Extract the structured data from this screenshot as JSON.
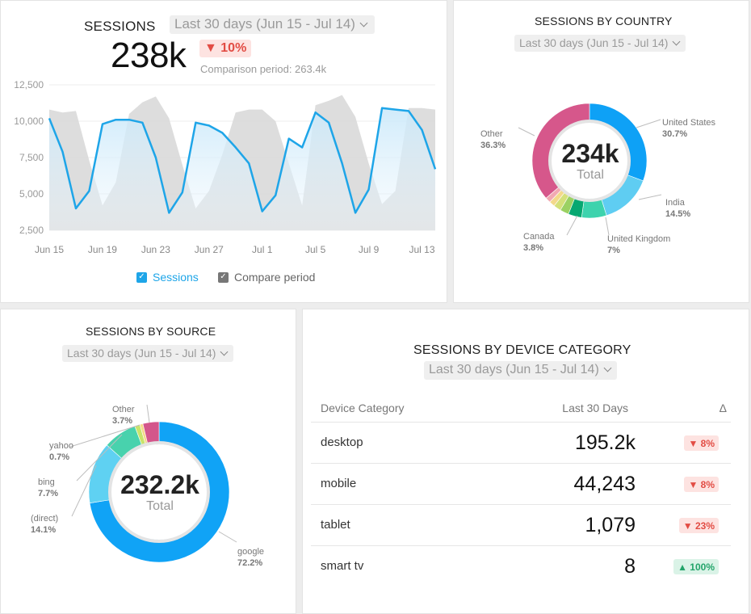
{
  "sessions": {
    "title": "SESSIONS",
    "date_range": "Last 30 days (Jun 15 - Jul 14)",
    "value": "238k",
    "delta": "▼ 10%",
    "comparison": "Comparison period: 263.4k",
    "legend": [
      {
        "label": "Sessions",
        "color": "#1ea5e8"
      },
      {
        "label": "Compare period",
        "color": "#777777"
      }
    ],
    "colors": {
      "line": "#1ea5e8",
      "compare": "#d7d7d7"
    }
  },
  "country": {
    "title": "SESSIONS BY COUNTRY",
    "date_range": "Last 30 days (Jun 15 - Jul 14)",
    "center_value": "234k",
    "center_label": "Total",
    "labels": {
      "us": {
        "name": "United States",
        "pct": "30.7%"
      },
      "india": {
        "name": "India",
        "pct": "14.5%"
      },
      "uk": {
        "name": "United Kingdom",
        "pct": "7%"
      },
      "canada": {
        "name": "Canada",
        "pct": "3.8%"
      },
      "other": {
        "name": "Other",
        "pct": "36.3%"
      }
    }
  },
  "source": {
    "title": "SESSIONS BY SOURCE",
    "date_range": "Last 30 days (Jun 15 - Jul 14)",
    "center_value": "232.2k",
    "center_label": "Total",
    "labels": {
      "other": {
        "name": "Other",
        "pct": "3.7%"
      },
      "yahoo": {
        "name": "yahoo",
        "pct": "0.7%"
      },
      "bing": {
        "name": "bing",
        "pct": "7.7%"
      },
      "direct": {
        "name": "(direct)",
        "pct": "14.1%"
      },
      "google": {
        "name": "google",
        "pct": "72.2%"
      }
    }
  },
  "device": {
    "title": "SESSIONS BY DEVICE CATEGORY",
    "date_range": "Last 30 days (Jun 15 - Jul 14)",
    "headers": {
      "category": "Device Category",
      "value": "Last 30 Days",
      "delta": "Δ"
    },
    "rows": [
      {
        "name": "desktop",
        "value": "195.2k",
        "delta": "▼ 8%",
        "dir": "down"
      },
      {
        "name": "mobile",
        "value": "44,243",
        "delta": "▼ 8%",
        "dir": "down"
      },
      {
        "name": "tablet",
        "value": "1,079",
        "delta": "▼ 23%",
        "dir": "down"
      },
      {
        "name": "smart tv",
        "value": "8",
        "delta": "▲ 100%",
        "dir": "up"
      }
    ]
  },
  "chart_data": [
    {
      "type": "area",
      "title": "SESSIONS",
      "ylim": [
        2500,
        12500
      ],
      "y_ticks": [
        2500,
        5000,
        7500,
        10000,
        12500
      ],
      "y_tick_labels": [
        "2,500",
        "5,000",
        "7,500",
        "10,000",
        "12,500"
      ],
      "x_tick_labels": [
        "Jun 15",
        "Jun 19",
        "Jun 23",
        "Jun 27",
        "Jul 1",
        "Jul 5",
        "Jul 9",
        "Jul 13"
      ],
      "x_tick_index": [
        0,
        4,
        8,
        12,
        16,
        20,
        24,
        28
      ],
      "grid": true,
      "legend_position": "bottom",
      "series": [
        {
          "name": "Sessions",
          "values": [
            10200,
            7900,
            4000,
            5200,
            9800,
            10100,
            10100,
            9900,
            7500,
            3700,
            5100,
            9900,
            9700,
            9200,
            8200,
            7100,
            3800,
            4900,
            8800,
            8200,
            10600,
            9900,
            7100,
            3700,
            5300,
            10900,
            10800,
            10700,
            9400,
            6700
          ]
        },
        {
          "name": "Compare period",
          "values": [
            10800,
            10600,
            10700,
            7300,
            4200,
            5800,
            10500,
            11300,
            11700,
            10200,
            7000,
            4000,
            5200,
            7700,
            10600,
            10800,
            10800,
            10000,
            7100,
            4200,
            11100,
            11400,
            11800,
            10300,
            7100,
            4300,
            5200,
            10900,
            10900,
            10800
          ]
        }
      ]
    },
    {
      "type": "pie",
      "title": "SESSIONS BY COUNTRY",
      "categories": [
        "United States",
        "India",
        "United Kingdom",
        "Canada",
        "",
        "",
        "",
        "",
        "Other"
      ],
      "values": [
        30.7,
        14.5,
        7,
        3.8,
        2.5,
        2.1,
        1.6,
        1.5,
        36.3
      ],
      "colors": [
        "#0ea1f6",
        "#5fcdf2",
        "#3dd3ad",
        "#06a871",
        "#9bd162",
        "#d5e07a",
        "#f3d98b",
        "#f2a9b2",
        "#d6578b"
      ]
    },
    {
      "type": "pie",
      "title": "SESSIONS BY SOURCE",
      "categories": [
        "google",
        "(direct)",
        "bing",
        "",
        "yahoo",
        "Other"
      ],
      "values": [
        72.2,
        14.1,
        7.7,
        1.2,
        0.7,
        3.7
      ],
      "colors": [
        "#10a3f6",
        "#5fd1f2",
        "#48d2ad",
        "#c9e36b",
        "#f5d98a",
        "#d4568b"
      ]
    }
  ]
}
